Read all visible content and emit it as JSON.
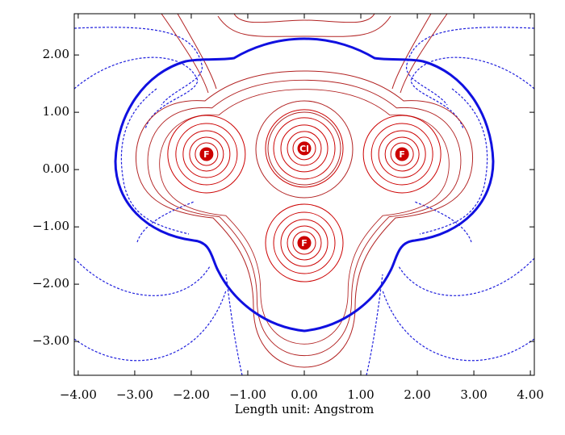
{
  "chart_data": {
    "type": "contour",
    "xlabel": "Length unit: Angstrom",
    "xlim": [
      -4.07,
      4.07
    ],
    "ylim": [
      -3.59,
      2.72
    ],
    "xticks": [
      {
        "value": -4,
        "label": "−4.00"
      },
      {
        "value": -3,
        "label": "−3.00"
      },
      {
        "value": -2,
        "label": "−2.00"
      },
      {
        "value": -1,
        "label": "−1.00"
      },
      {
        "value": 0,
        "label": "0.00"
      },
      {
        "value": 1,
        "label": "1.00"
      },
      {
        "value": 2,
        "label": "2.00"
      },
      {
        "value": 3,
        "label": "3.00"
      },
      {
        "value": 4,
        "label": "4.00"
      }
    ],
    "yticks": [
      {
        "value": 2,
        "label": "2.00"
      },
      {
        "value": 1,
        "label": "1.00"
      },
      {
        "value": 0,
        "label": "0.00"
      },
      {
        "value": -1,
        "label": "−1.00"
      },
      {
        "value": -2,
        "label": "−2.00"
      },
      {
        "value": -3,
        "label": "−3.00"
      }
    ],
    "atoms": [
      {
        "label": "F",
        "x": -1.73,
        "y": 0.27
      },
      {
        "label": "Cl",
        "x": 0,
        "y": 0.37
      },
      {
        "label": "F",
        "x": 1.73,
        "y": 0.27
      },
      {
        "label": "F",
        "x": 0,
        "y": -1.28
      }
    ],
    "color": "#cc0000"
  }
}
